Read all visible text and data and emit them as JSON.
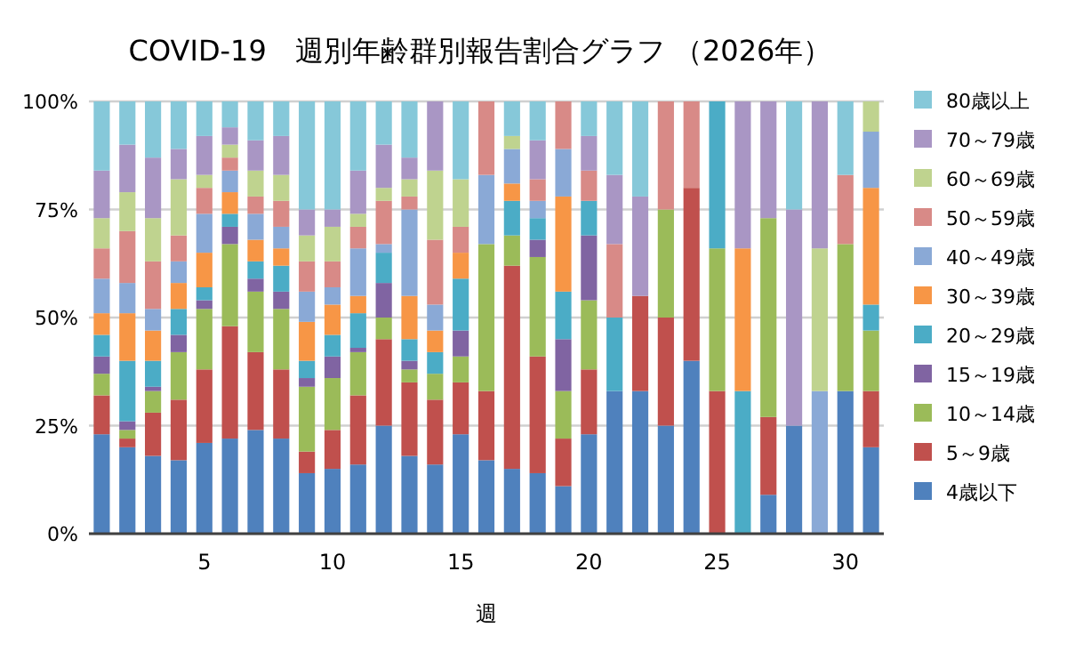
{
  "chart_data": {
    "type": "bar",
    "title": "COVID-19　週別年齢群別報告割合グラフ （2026年）",
    "xlabel": "週",
    "stacked": true,
    "x": [
      1,
      2,
      3,
      4,
      5,
      6,
      7,
      8,
      9,
      10,
      11,
      12,
      13,
      14,
      15,
      16,
      17,
      18,
      19,
      20,
      21,
      22,
      23,
      24,
      25,
      26,
      27,
      28,
      29,
      30,
      31
    ],
    "xlim": [
      0.5,
      31.5
    ],
    "xticks": [
      5,
      10,
      15,
      20,
      25,
      30
    ],
    "ylim": [
      0,
      100
    ],
    "yticks": [
      {
        "value": 0,
        "label": "0%"
      },
      {
        "value": 25,
        "label": "25%"
      },
      {
        "value": 50,
        "label": "50%"
      },
      {
        "value": 75,
        "label": "75%"
      },
      {
        "value": 100,
        "label": "100%"
      }
    ],
    "grid": "y",
    "legend": "right",
    "series": [
      {
        "name": "4歳以下",
        "color": "#4f81bd",
        "values": [
          23,
          20,
          18,
          17,
          21,
          22,
          24,
          22,
          14,
          15,
          16,
          25,
          18,
          16,
          23,
          17,
          15,
          14,
          11,
          23,
          33,
          33,
          25,
          40,
          0,
          0,
          9,
          25,
          0,
          33,
          20
        ]
      },
      {
        "name": "5～9歳",
        "color": "#c0504d",
        "values": [
          9,
          2,
          10,
          14,
          17,
          26,
          18,
          16,
          5,
          9,
          16,
          20,
          17,
          15,
          12,
          16,
          47,
          27,
          11,
          15,
          0,
          22,
          25,
          40,
          33,
          0,
          18,
          0,
          0,
          0,
          13
        ]
      },
      {
        "name": "10～14歳",
        "color": "#9bbb59",
        "values": [
          5,
          2,
          5,
          11,
          14,
          19,
          14,
          14,
          15,
          12,
          10,
          5,
          3,
          6,
          6,
          34,
          7,
          23,
          11,
          16,
          0,
          0,
          25,
          0,
          33,
          0,
          46,
          0,
          0,
          34,
          14
        ]
      },
      {
        "name": "15～19歳",
        "color": "#8064a2",
        "values": [
          4,
          2,
          1,
          4,
          2,
          4,
          3,
          4,
          2,
          5,
          1,
          8,
          2,
          0,
          6,
          0,
          0,
          4,
          12,
          15,
          0,
          0,
          0,
          0,
          0,
          0,
          0,
          0,
          0,
          0,
          0
        ]
      },
      {
        "name": "20～29歳",
        "color": "#4bacc6",
        "values": [
          5,
          14,
          6,
          6,
          3,
          3,
          4,
          6,
          4,
          5,
          8,
          7,
          5,
          5,
          12,
          0,
          8,
          5,
          11,
          8,
          17,
          0,
          0,
          0,
          34,
          33,
          0,
          0,
          0,
          0,
          6
        ]
      },
      {
        "name": "30～39歳",
        "color": "#f79646",
        "values": [
          5,
          11,
          7,
          6,
          8,
          5,
          5,
          4,
          9,
          7,
          4,
          0,
          10,
          5,
          6,
          0,
          4,
          0,
          22,
          0,
          0,
          0,
          0,
          0,
          0,
          33,
          0,
          0,
          0,
          0,
          27
        ]
      },
      {
        "name": "40～49歳",
        "color": "#8aa9d6",
        "values": [
          8,
          7,
          5,
          5,
          9,
          5,
          6,
          5,
          7,
          4,
          11,
          2,
          20,
          6,
          0,
          16,
          8,
          4,
          11,
          0,
          0,
          0,
          0,
          0,
          0,
          0,
          0,
          0,
          33,
          0,
          13
        ]
      },
      {
        "name": "50～59歳",
        "color": "#d88a87",
        "values": [
          7,
          12,
          11,
          6,
          6,
          3,
          4,
          6,
          7,
          6,
          5,
          10,
          3,
          15,
          6,
          17,
          0,
          5,
          11,
          7,
          17,
          0,
          25,
          20,
          0,
          0,
          0,
          0,
          0,
          16,
          0
        ]
      },
      {
        "name": "60～69歳",
        "color": "#bfd38f",
        "values": [
          7,
          9,
          10,
          13,
          3,
          3,
          6,
          6,
          6,
          8,
          3,
          3,
          4,
          16,
          11,
          0,
          3,
          0,
          0,
          0,
          0,
          0,
          0,
          0,
          0,
          0,
          0,
          0,
          33,
          0,
          7
        ]
      },
      {
        "name": "70～79歳",
        "color": "#a996c4",
        "values": [
          11,
          11,
          14,
          7,
          9,
          4,
          7,
          9,
          6,
          4,
          10,
          10,
          5,
          16,
          0,
          0,
          0,
          9,
          0,
          8,
          16,
          23,
          0,
          0,
          0,
          34,
          27,
          50,
          34,
          0,
          0
        ]
      },
      {
        "name": "80歳以上",
        "color": "#86c8d9",
        "values": [
          16,
          10,
          13,
          11,
          8,
          6,
          9,
          8,
          25,
          25,
          16,
          10,
          13,
          0,
          18,
          0,
          8,
          9,
          0,
          8,
          17,
          22,
          0,
          0,
          0,
          0,
          0,
          25,
          0,
          17,
          0
        ]
      }
    ]
  }
}
